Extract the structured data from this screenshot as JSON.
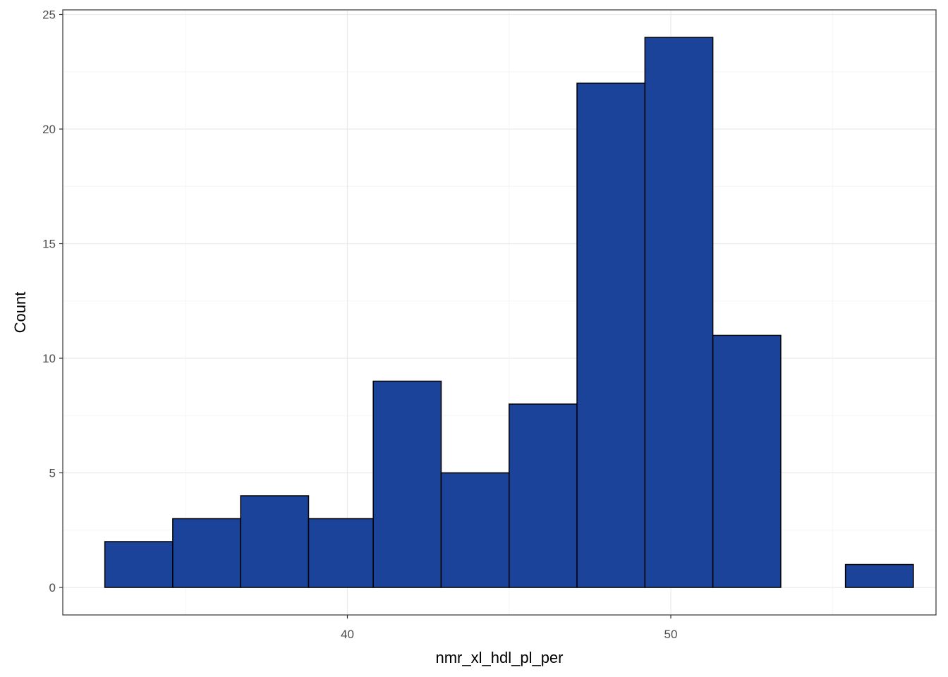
{
  "chart_data": {
    "type": "histogram",
    "xlabel": "nmr_xl_hdl_pl_per",
    "ylabel": "Count",
    "xlim": [
      31.2,
      58.2
    ],
    "ylim": [
      -1.2,
      25.2
    ],
    "x_ticks": [
      40,
      50
    ],
    "y_ticks": [
      0,
      5,
      10,
      15,
      20,
      25
    ],
    "grid": true,
    "bins": [
      {
        "x0": 32.5,
        "x1": 34.6,
        "count": 2
      },
      {
        "x0": 34.6,
        "x1": 36.7,
        "count": 3
      },
      {
        "x0": 36.7,
        "x1": 38.8,
        "count": 4
      },
      {
        "x0": 38.8,
        "x1": 40.8,
        "count": 3
      },
      {
        "x0": 40.8,
        "x1": 42.9,
        "count": 9
      },
      {
        "x0": 42.9,
        "x1": 45.0,
        "count": 5
      },
      {
        "x0": 45.0,
        "x1": 47.1,
        "count": 8
      },
      {
        "x0": 47.1,
        "x1": 49.2,
        "count": 22
      },
      {
        "x0": 49.2,
        "x1": 51.3,
        "count": 24
      },
      {
        "x0": 51.3,
        "x1": 53.4,
        "count": 11
      },
      {
        "x0": 53.4,
        "x1": 55.4,
        "count": 0
      },
      {
        "x0": 55.4,
        "x1": 57.5,
        "count": 1
      }
    ],
    "colors": {
      "bar_fill": "#1a4399",
      "bar_stroke": "#000000",
      "grid_major": "#ebebeb",
      "grid_minor": "#f5f5f5",
      "panel_border": "#333333"
    }
  }
}
